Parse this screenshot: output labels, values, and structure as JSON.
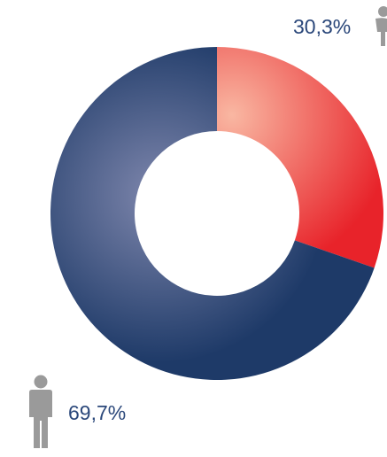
{
  "colors": {
    "female_light": "#f9b7a2",
    "female_dark": "#e8232a",
    "male_light": "#7f87ad",
    "male_dark": "#1e3a68",
    "label_text": "#2a477a",
    "icon_gray": "#9a9a9a",
    "center": "#ffffff"
  },
  "chart_data": {
    "type": "pie",
    "donut": true,
    "title": "",
    "categories": [
      "female",
      "male"
    ],
    "values": [
      30.3,
      69.7
    ],
    "labels": [
      "30,3%",
      "69,7%"
    ],
    "icons": [
      "woman-icon",
      "man-icon"
    ]
  }
}
